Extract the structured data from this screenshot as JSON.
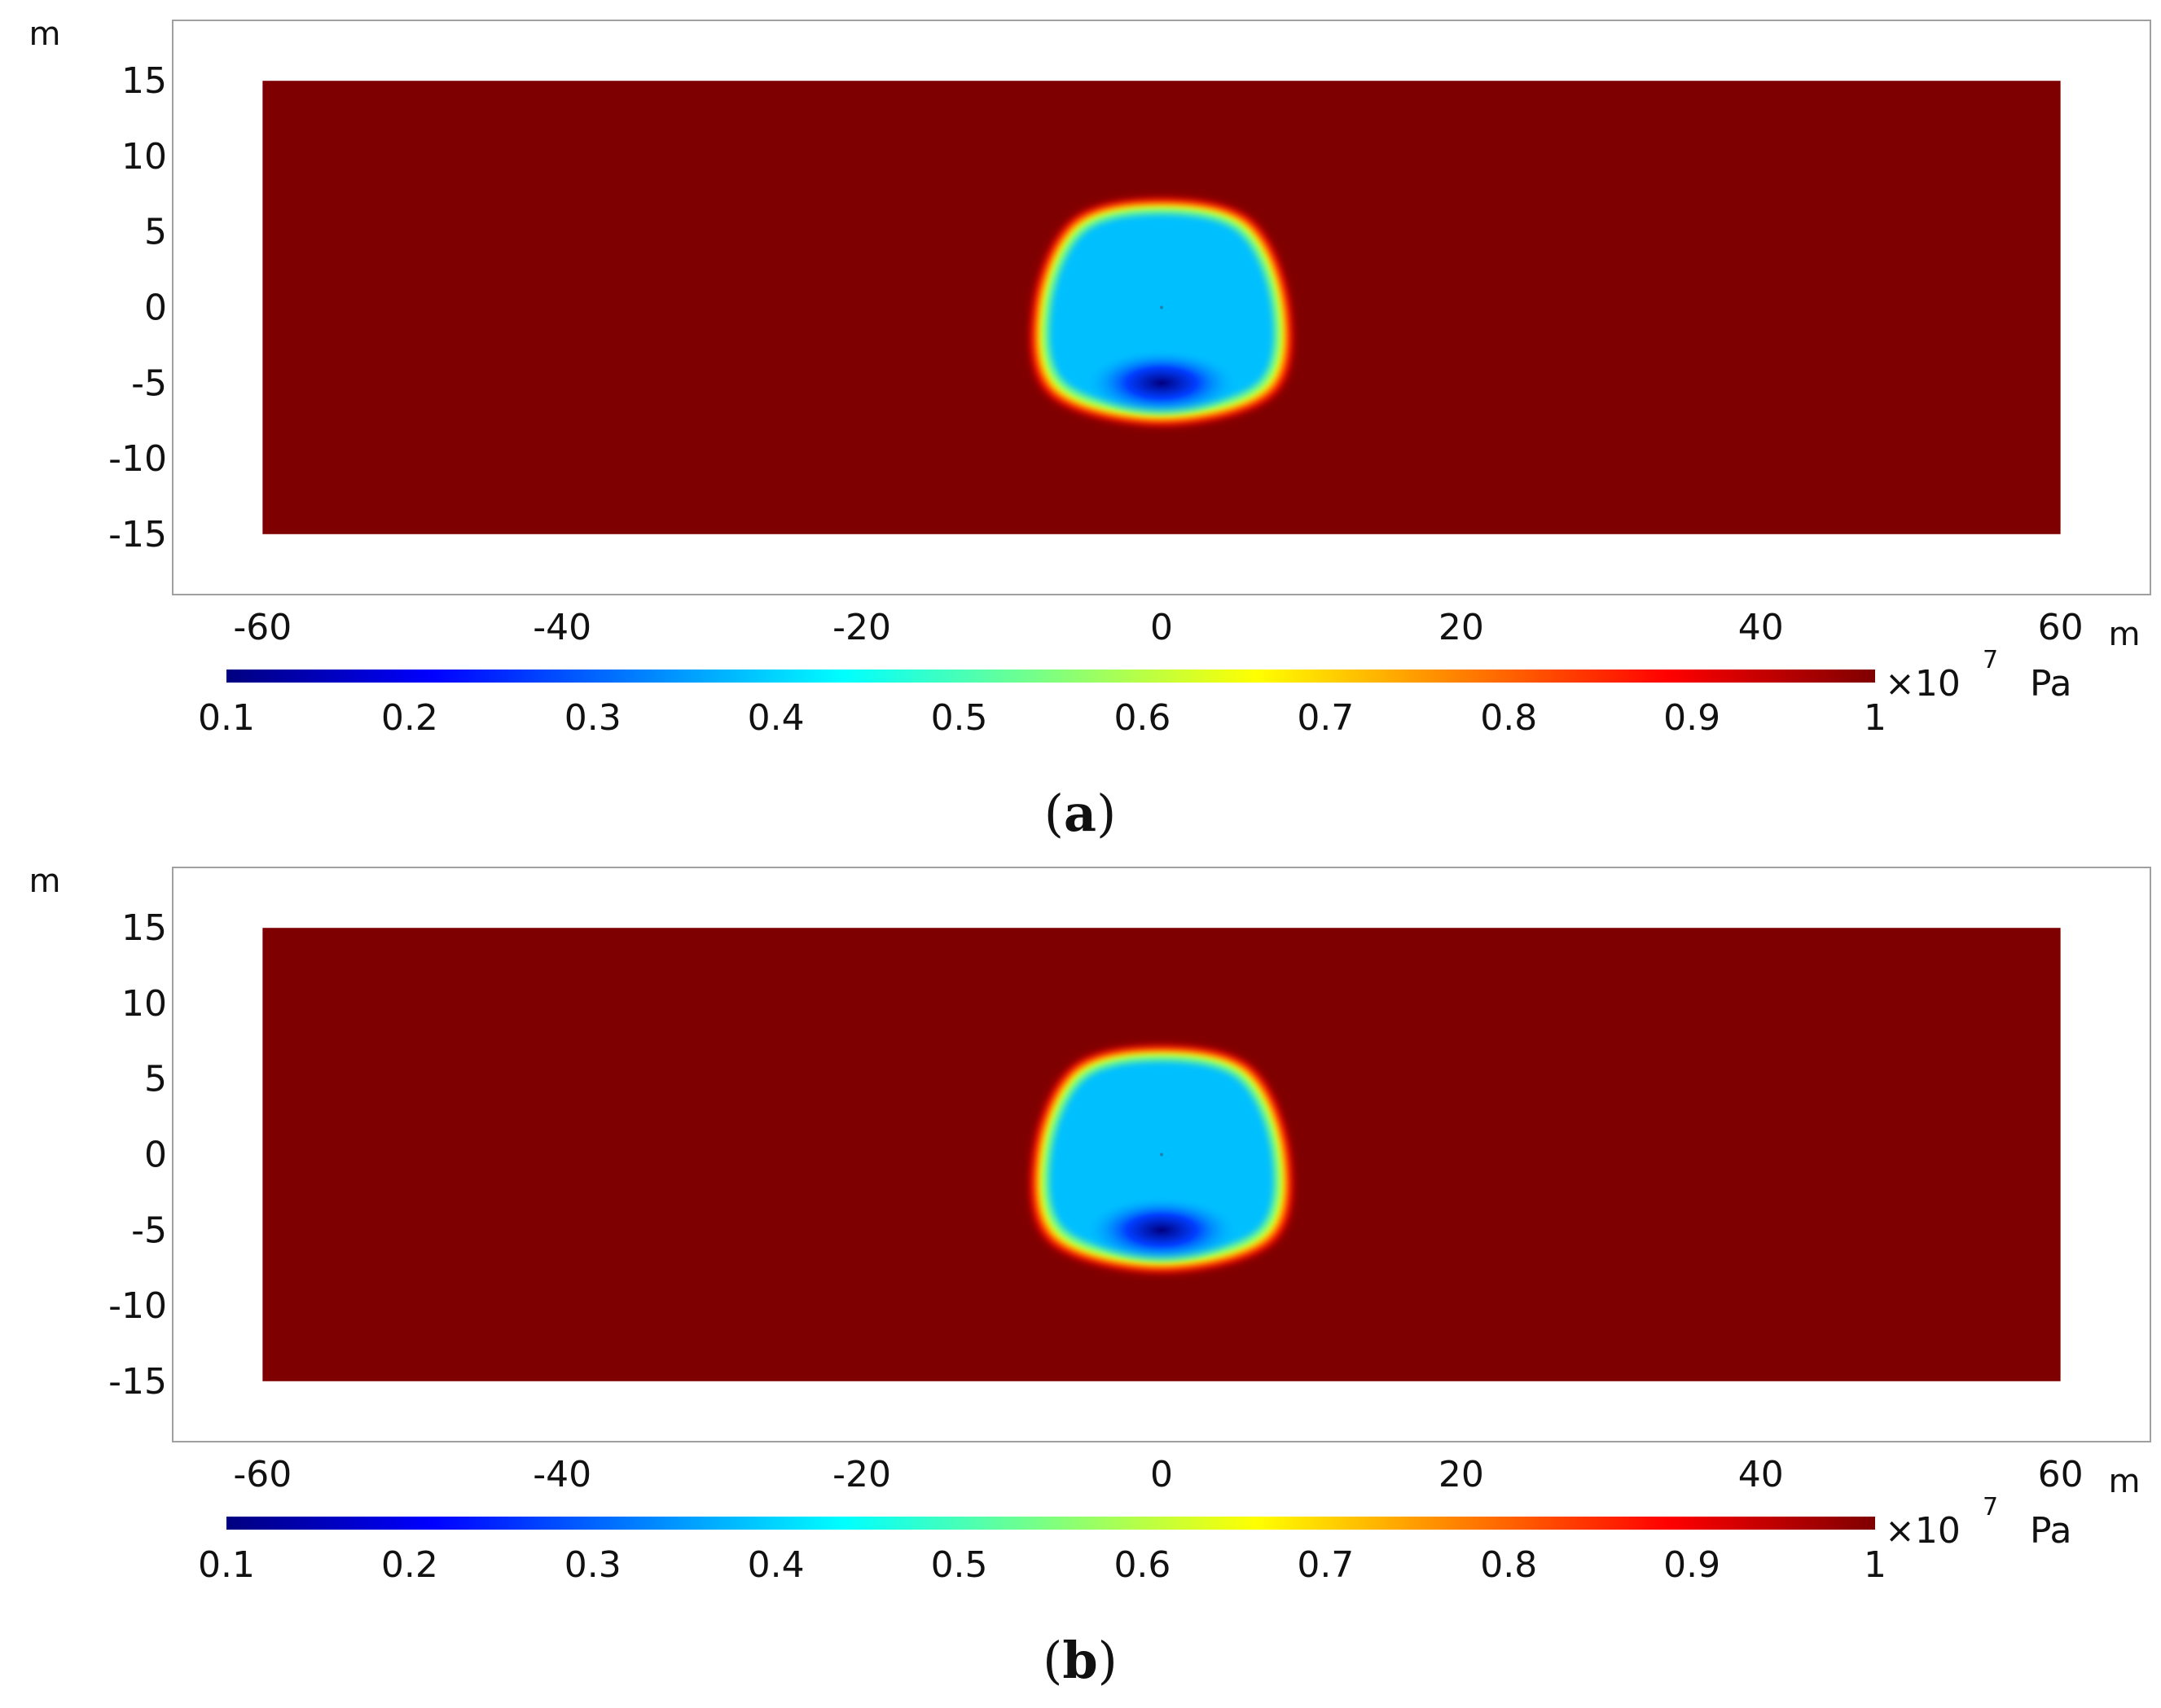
{
  "chart_data": [
    {
      "type": "heatmap",
      "panel_label_letter": "a",
      "x_unit": "m",
      "y_unit": "m",
      "xlim": [
        -66,
        66
      ],
      "ylim": [
        -19,
        19
      ],
      "x_ticks": [
        -60,
        -40,
        -20,
        0,
        20,
        40,
        60
      ],
      "y_ticks": [
        15,
        10,
        5,
        0,
        -5,
        -10,
        -15
      ],
      "domain": {
        "x": [
          -60,
          60
        ],
        "y": [
          -15,
          15
        ]
      },
      "field": "pressure",
      "background_value": 1.0,
      "depression": {
        "outer_boundary": [
          [
            0,
            7.2
          ],
          [
            6,
            5.8
          ],
          [
            8.6,
            0
          ],
          [
            7.5,
            -5.8
          ],
          [
            0,
            -7.8
          ],
          [
            -7.5,
            -5.8
          ],
          [
            -8.6,
            0
          ],
          [
            -6,
            5.8
          ]
        ],
        "plateau_value": 0.45,
        "min_value": 0.1,
        "min_location": [
          0,
          -5
        ]
      },
      "colorbar": {
        "ticks": [
          0.1,
          0.2,
          0.3,
          0.4,
          0.5,
          0.6,
          0.7,
          0.8,
          0.9,
          1
        ],
        "min": 0.1,
        "max": 1,
        "multiplier": "×10",
        "exponent": "7",
        "unit": "Pa",
        "colors": [
          "#00007f",
          "#0000ff",
          "#007fff",
          "#00ffff",
          "#7fff7f",
          "#ffff00",
          "#ff7f00",
          "#ff0000",
          "#7f0000"
        ]
      }
    },
    {
      "type": "heatmap",
      "panel_label_letter": "b",
      "x_unit": "m",
      "y_unit": "m",
      "xlim": [
        -66,
        66
      ],
      "ylim": [
        -19,
        19
      ],
      "x_ticks": [
        -60,
        -40,
        -20,
        0,
        20,
        40,
        60
      ],
      "y_ticks": [
        15,
        10,
        5,
        0,
        -5,
        -10,
        -15
      ],
      "domain": {
        "x": [
          -60,
          60
        ],
        "y": [
          -15,
          15
        ]
      },
      "field": "pressure",
      "background_value": 1.0,
      "depression": {
        "outer_boundary": [
          [
            0,
            7.2
          ],
          [
            6,
            5.8
          ],
          [
            8.6,
            0
          ],
          [
            7.5,
            -5.8
          ],
          [
            0,
            -7.8
          ],
          [
            -7.5,
            -5.8
          ],
          [
            -8.6,
            0
          ],
          [
            -6,
            5.8
          ]
        ],
        "plateau_value": 0.45,
        "min_value": 0.08,
        "min_location": [
          0,
          -5
        ]
      },
      "colorbar": {
        "ticks": [
          0.1,
          0.2,
          0.3,
          0.4,
          0.5,
          0.6,
          0.7,
          0.8,
          0.9,
          1
        ],
        "min": 0.1,
        "max": 1,
        "multiplier": "×10",
        "exponent": "7",
        "unit": "Pa",
        "colors": [
          "#00007f",
          "#0000ff",
          "#007fff",
          "#00ffff",
          "#7fff7f",
          "#ffff00",
          "#ff7f00",
          "#ff0000",
          "#7f0000"
        ]
      }
    }
  ]
}
